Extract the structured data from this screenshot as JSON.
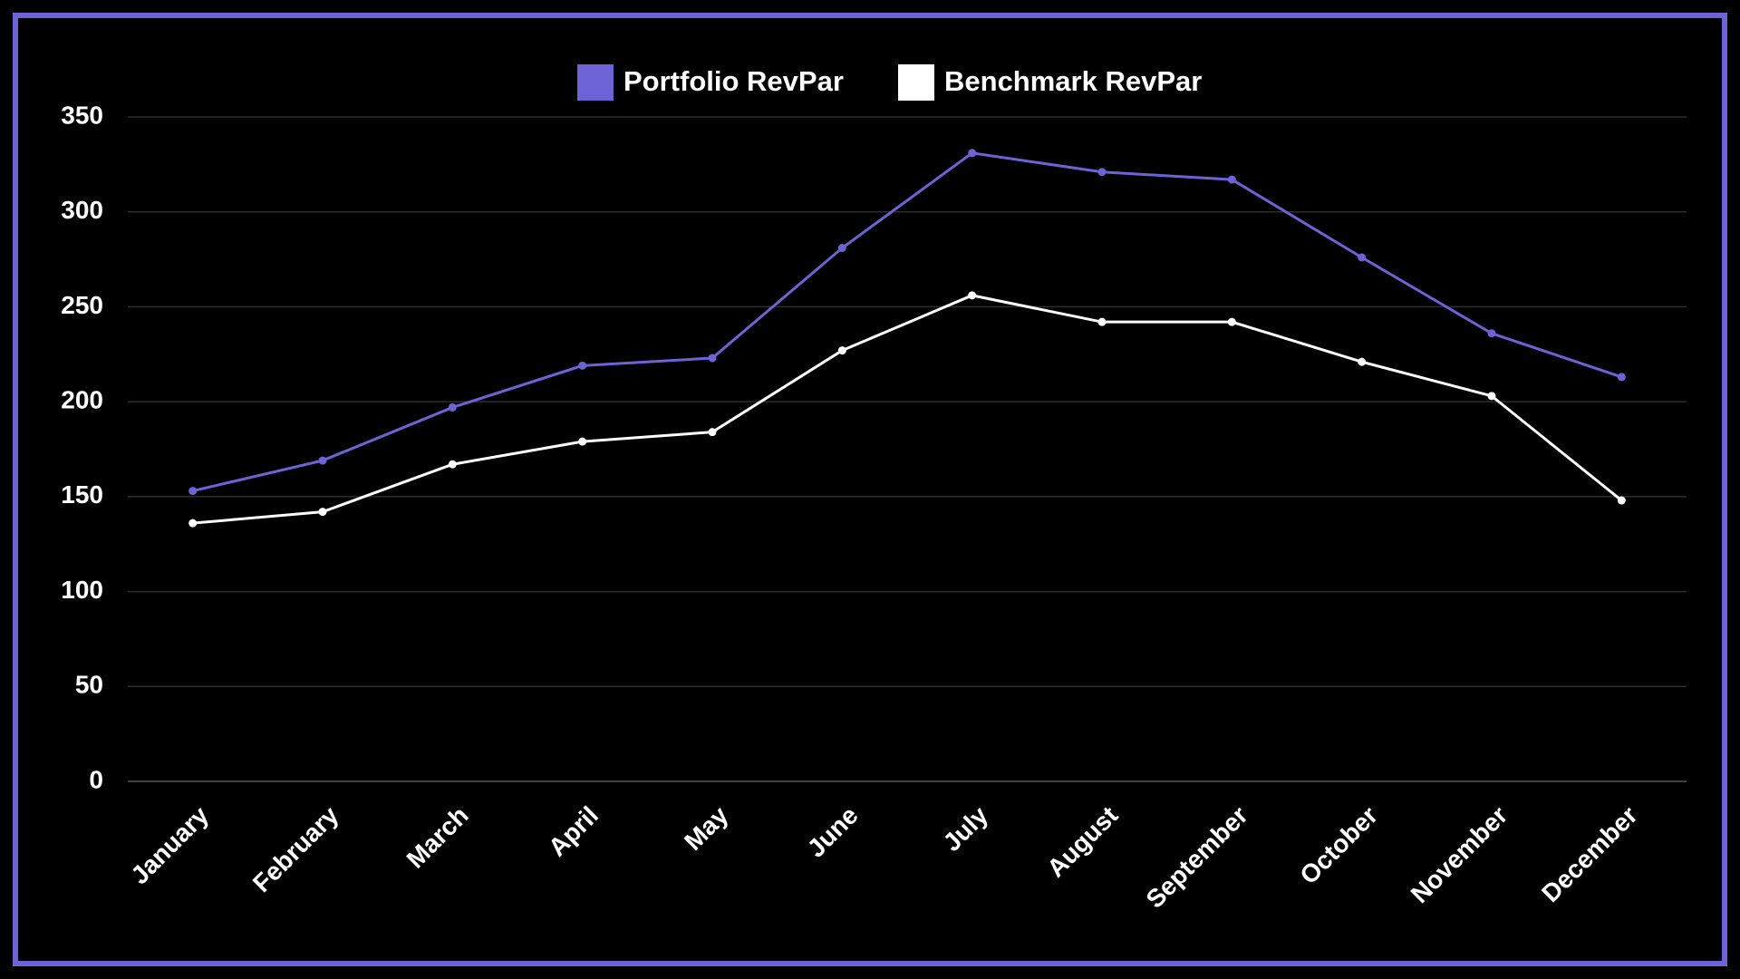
{
  "chart_data": {
    "type": "line",
    "categories": [
      "January",
      "February",
      "March",
      "April",
      "May",
      "June",
      "July",
      "August",
      "September",
      "October",
      "November",
      "December"
    ],
    "series": [
      {
        "name": "Portfolio RevPar",
        "color": "#6b63d6",
        "values": [
          153,
          169,
          197,
          219,
          223,
          281,
          331,
          321,
          317,
          276,
          236,
          213
        ]
      },
      {
        "name": "Benchmark RevPar",
        "color": "#ffffff",
        "values": [
          136,
          142,
          167,
          179,
          184,
          227,
          256,
          242,
          242,
          221,
          203,
          148
        ]
      }
    ],
    "ylim": [
      0,
      350
    ],
    "yticks": [
      0,
      50,
      100,
      150,
      200,
      250,
      300,
      350
    ],
    "grid": true,
    "legend": "top"
  }
}
